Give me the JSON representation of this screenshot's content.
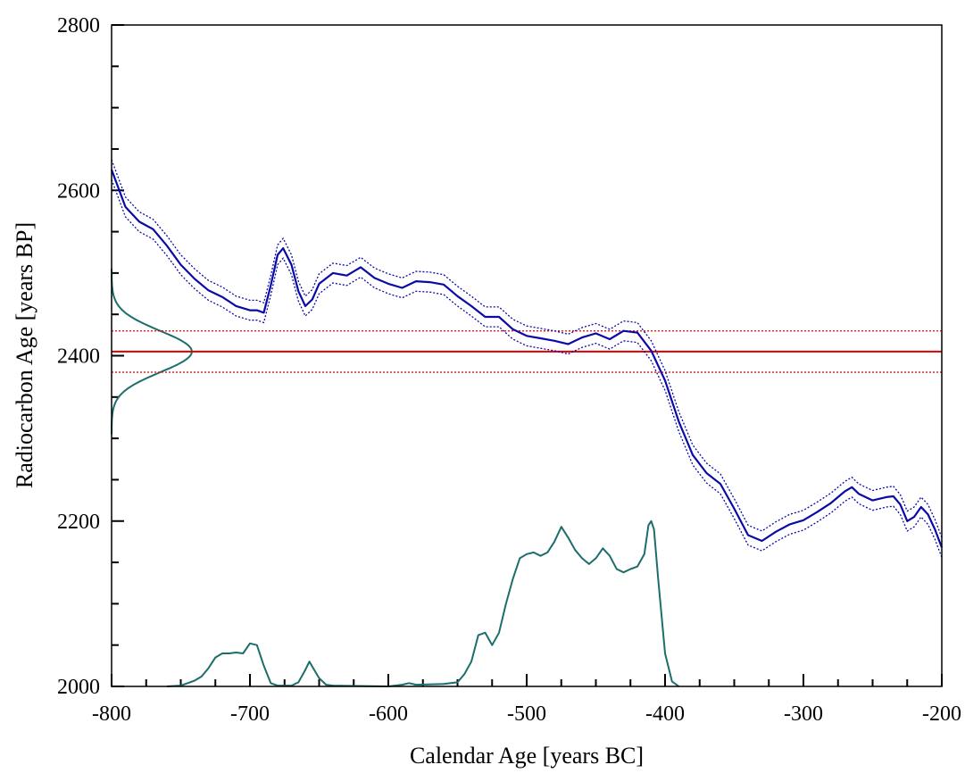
{
  "chart_data": {
    "type": "line",
    "title": "",
    "xlabel": "Calendar Age [years BC]",
    "ylabel": "Radiocarbon Age [years BP]",
    "xlim": [
      -800,
      -200
    ],
    "ylim": [
      2000,
      2800
    ],
    "x_ticks": [
      -800,
      -700,
      -600,
      -500,
      -400,
      -300,
      -200
    ],
    "y_ticks": [
      2000,
      2200,
      2400,
      2600,
      2800
    ],
    "x_tick_labels": [
      "-800",
      "-700",
      "-600",
      "-500",
      "-400",
      "-300",
      "-200"
    ],
    "y_tick_labels": [
      "2000",
      "2200",
      "2400",
      "2600",
      "2800"
    ],
    "grid": false,
    "colors": {
      "calibration": "#0a0aa8",
      "measurement": "#dd0000",
      "probability": "#1b6e6b"
    },
    "calibration_curve": {
      "x": [
        -800,
        -790,
        -780,
        -770,
        -760,
        -750,
        -740,
        -730,
        -720,
        -710,
        -700,
        -695,
        -690,
        -685,
        -680,
        -676,
        -670,
        -665,
        -660,
        -655,
        -650,
        -640,
        -630,
        -620,
        -610,
        -600,
        -590,
        -580,
        -570,
        -560,
        -550,
        -540,
        -530,
        -520,
        -510,
        -500,
        -490,
        -480,
        -470,
        -460,
        -450,
        -440,
        -430,
        -420,
        -410,
        -400,
        -390,
        -380,
        -370,
        -360,
        -350,
        -340,
        -330,
        -320,
        -310,
        -300,
        -290,
        -280,
        -270,
        -265,
        -260,
        -250,
        -240,
        -235,
        -230,
        -225,
        -220,
        -215,
        -210,
        -205,
        -200
      ],
      "y": [
        2625,
        2580,
        2562,
        2553,
        2533,
        2510,
        2493,
        2479,
        2471,
        2460,
        2455,
        2455,
        2452,
        2485,
        2522,
        2530,
        2510,
        2478,
        2460,
        2468,
        2487,
        2500,
        2497,
        2507,
        2494,
        2487,
        2482,
        2490,
        2489,
        2486,
        2472,
        2460,
        2447,
        2447,
        2432,
        2424,
        2421,
        2418,
        2414,
        2422,
        2427,
        2420,
        2430,
        2428,
        2406,
        2370,
        2320,
        2280,
        2258,
        2245,
        2215,
        2183,
        2176,
        2187,
        2196,
        2201,
        2211,
        2222,
        2236,
        2241,
        2233,
        2225,
        2229,
        2230,
        2220,
        2200,
        2205,
        2217,
        2208,
        2190,
        2168
      ],
      "uncertainty": 12
    },
    "measurement": {
      "value": 2405,
      "sigma": 25
    },
    "measurement_probability": {
      "mean": 2405,
      "sigma": 25,
      "x_base": -800,
      "x_peak": -742
    },
    "calibrated_probability": {
      "baseline": 2000,
      "x": [
        -760,
        -750,
        -745,
        -740,
        -735,
        -730,
        -725,
        -720,
        -715,
        -710,
        -705,
        -700,
        -695,
        -690,
        -685,
        -680,
        -670,
        -665,
        -660,
        -657,
        -655,
        -650,
        -645,
        -640,
        -600,
        -590,
        -585,
        -580,
        -560,
        -550,
        -545,
        -540,
        -535,
        -530,
        -525,
        -520,
        -515,
        -510,
        -505,
        -500,
        -495,
        -490,
        -485,
        -480,
        -475,
        -470,
        -465,
        -460,
        -455,
        -450,
        -445,
        -440,
        -435,
        -430,
        -425,
        -420,
        -415,
        -412,
        -410,
        -408,
        -405,
        -400,
        -395,
        -390
      ],
      "y": [
        2000,
        2001,
        2004,
        2007,
        2012,
        2022,
        2035,
        2040,
        2040,
        2041,
        2040,
        2052,
        2050,
        2025,
        2004,
        2001,
        2001,
        2005,
        2020,
        2030,
        2024,
        2010,
        2002,
        2001,
        2000,
        2002,
        2004,
        2002,
        2003,
        2005,
        2015,
        2030,
        2062,
        2065,
        2050,
        2065,
        2100,
        2130,
        2155,
        2160,
        2162,
        2158,
        2162,
        2175,
        2193,
        2180,
        2165,
        2155,
        2148,
        2155,
        2167,
        2158,
        2142,
        2138,
        2142,
        2145,
        2160,
        2195,
        2200,
        2190,
        2130,
        2040,
        2006,
        2000
      ]
    }
  }
}
